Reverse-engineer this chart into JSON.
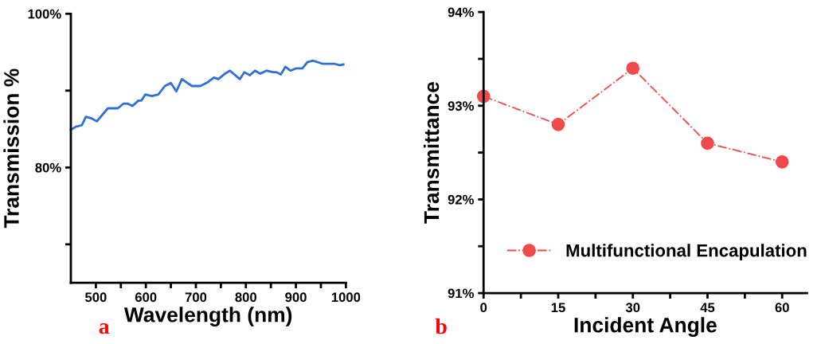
{
  "chart_data": [
    {
      "type": "line",
      "xlabel": "Wavelength (nm)",
      "ylabel": "Transmission %",
      "annotations": [
        "a"
      ],
      "x": [
        450,
        460,
        472,
        480,
        491,
        502,
        524,
        544,
        555,
        564,
        573,
        585,
        591,
        599,
        612,
        625,
        638,
        650,
        661,
        672,
        692,
        709,
        724,
        736,
        745,
        758,
        768,
        788,
        797,
        808,
        818,
        829,
        841,
        854,
        861,
        870,
        879,
        889,
        901,
        913,
        923,
        934,
        953,
        976,
        988,
        995
      ],
      "series": [
        {
          "color": "#2f6fd6",
          "values": [
            84.9,
            85.3,
            85.5,
            86.6,
            86.4,
            86.0,
            87.7,
            87.7,
            88.3,
            88.3,
            88.0,
            88.7,
            88.7,
            89.5,
            89.3,
            89.5,
            90.6,
            91.0,
            89.9,
            91.5,
            90.6,
            90.6,
            91.1,
            91.7,
            91.5,
            92.2,
            92.6,
            91.5,
            92.4,
            92.0,
            92.6,
            92.2,
            92.6,
            92.4,
            92.4,
            92.1,
            93.1,
            92.6,
            92.9,
            92.9,
            93.7,
            93.9,
            93.5,
            93.5,
            93.3,
            93.4
          ]
        }
      ],
      "xlim": [
        450,
        1000
      ],
      "xticks": [
        500,
        600,
        700,
        800,
        900,
        1000,
        {
          "value": 550,
          "label": null
        },
        {
          "value": 650,
          "label": null
        },
        {
          "value": 750,
          "label": null
        },
        {
          "value": 850,
          "label": null
        },
        {
          "value": 950,
          "label": null
        }
      ],
      "ylim": [
        65,
        100
      ],
      "yticks": [
        {
          "value": 100,
          "label": "100%"
        },
        {
          "value": 80,
          "label": "80%"
        },
        {
          "value": 90,
          "label": null
        },
        {
          "value": 70,
          "label": null
        }
      ],
      "grid": false,
      "legend": false,
      "marker": "none",
      "line_style": "solid"
    },
    {
      "type": "line",
      "xlabel": "Incident Angle",
      "ylabel": "Transmittance",
      "annotations": [
        "b"
      ],
      "x": [
        0,
        15,
        30,
        45,
        60
      ],
      "series": [
        {
          "name": "Multifunctional Encapulation",
          "color": "#f04a4a",
          "values": [
            93.1,
            92.8,
            93.4,
            92.6,
            92.4
          ]
        }
      ],
      "xlim": [
        0,
        65
      ],
      "xticks": [
        0,
        15,
        30,
        45,
        60,
        {
          "value": 7.5,
          "label": null
        },
        {
          "value": 22.5,
          "label": null
        },
        {
          "value": 37.5,
          "label": null
        },
        {
          "value": 52.5,
          "label": null
        }
      ],
      "ylim": [
        91,
        94
      ],
      "yticks": [
        {
          "value": 91,
          "label": "91%"
        },
        {
          "value": 92,
          "label": "92%"
        },
        {
          "value": 93,
          "label": "93%"
        },
        {
          "value": 94,
          "label": "94%"
        },
        {
          "value": 91.5,
          "label": null
        },
        {
          "value": 92.5,
          "label": null
        },
        {
          "value": 93.5,
          "label": null
        }
      ],
      "grid": false,
      "legend": "bottom right",
      "marker": "circle",
      "line_style": "dashed"
    }
  ]
}
